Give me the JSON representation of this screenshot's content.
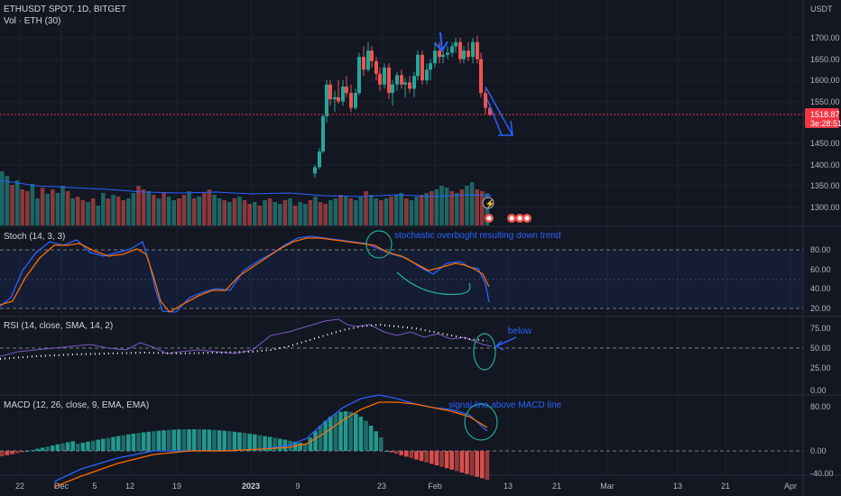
{
  "header": {
    "symbol_line": "ETHUSDT SPOT, 1D, BITGET",
    "volume_line": "Vol · ETH (30)"
  },
  "price_axis": {
    "currency": "USDT",
    "ticks": [
      "1700.00",
      "1650.00",
      "1600.00",
      "1550.00",
      "1450.00",
      "1400.00",
      "1350.00",
      "1300.00"
    ],
    "last_price": "1518.87",
    "countdown": "3e:28:51"
  },
  "panes": {
    "stoch": {
      "title": "Stoch (14, 3, 3)",
      "ticks": [
        "80.00",
        "60.00",
        "40.00",
        "20.00"
      ]
    },
    "rsi": {
      "title": "RSI (14, close, SMA, 14, 2)",
      "ticks": [
        "75.00",
        "50.00",
        "25.00",
        "0.00"
      ]
    },
    "macd": {
      "title": "MACD (12, 26, close, 9, EMA, EMA)",
      "ticks": [
        "80.00",
        "0.00",
        "-40.00"
      ]
    }
  },
  "time_axis": {
    "labels": [
      "22",
      "Dec",
      "5",
      "12",
      "19",
      "2023",
      "9",
      "23",
      "Feb",
      "13",
      "21",
      "Mar",
      "13",
      "21",
      "Apr"
    ]
  },
  "annotations": {
    "stoch_note": "stochastic overboght resulting down trend",
    "rsi_note": "below",
    "macd_note": "signal line above MACD line"
  },
  "colors": {
    "up": "#26a69a",
    "down": "#ef5350",
    "bg": "#131722",
    "grid": "#1e222d",
    "annot_blue": "#2962ff",
    "annot_green": "#22ab94",
    "price_tag": "#f23645"
  },
  "icons": [
    "lightning-icon",
    "earnings-flag-icon",
    "dividend-flag-icon"
  ]
}
